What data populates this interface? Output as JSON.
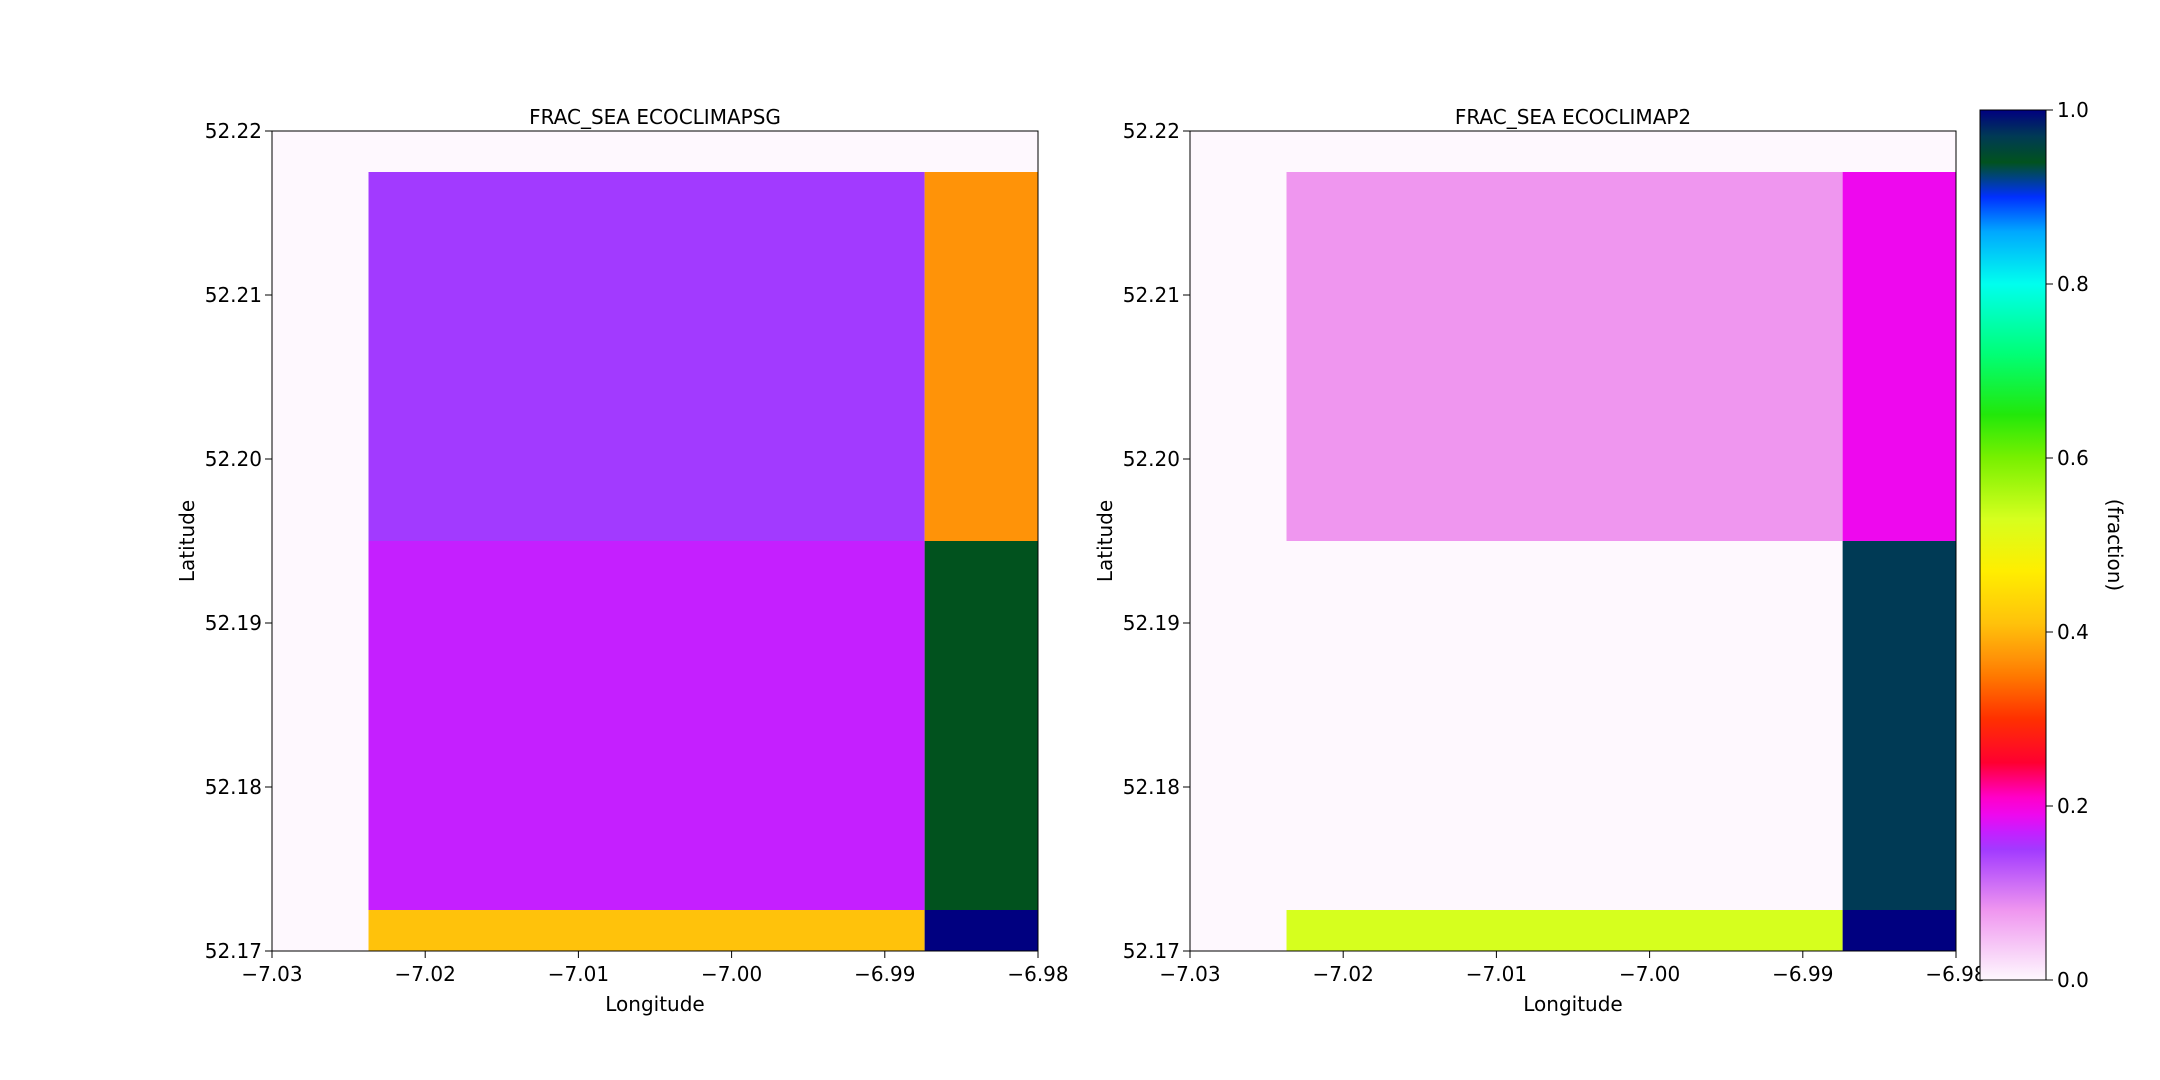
{
  "chart_data": [
    {
      "type": "heatmap",
      "title": "FRAC_SEA ECOCLIMAPSG",
      "xlabel": "Longitude",
      "ylabel": "Latitude",
      "xlim": [
        -7.03,
        -6.98
      ],
      "ylim": [
        52.17,
        52.22
      ],
      "xticks": [
        -7.03,
        -7.02,
        -7.01,
        -7.0,
        -6.99,
        -6.98
      ],
      "xtick_labels": [
        "−7.03",
        "−7.02",
        "−7.01",
        "−7.00",
        "−6.99",
        "−6.98"
      ],
      "yticks": [
        52.17,
        52.18,
        52.19,
        52.2,
        52.21,
        52.22
      ],
      "ytick_labels": [
        "52.17",
        "52.18",
        "52.19",
        "52.20",
        "52.21",
        "52.22"
      ],
      "background_value": 0.0,
      "cells": [
        {
          "x0": -7.0237,
          "x1": -6.9874,
          "y0": 52.195,
          "y1": 52.2175,
          "value": 0.15
        },
        {
          "x0": -6.9874,
          "x1": -6.98,
          "y0": 52.195,
          "y1": 52.2175,
          "value": 0.37
        },
        {
          "x0": -7.0237,
          "x1": -6.9874,
          "y0": 52.1725,
          "y1": 52.195,
          "value": 0.17
        },
        {
          "x0": -6.9874,
          "x1": -6.98,
          "y0": 52.1725,
          "y1": 52.195,
          "value": 0.94
        },
        {
          "x0": -7.0237,
          "x1": -6.9874,
          "y0": 52.17,
          "y1": 52.1725,
          "value": 0.41
        },
        {
          "x0": -6.9874,
          "x1": -6.98,
          "y0": 52.17,
          "y1": 52.1725,
          "value": 1.0
        }
      ]
    },
    {
      "type": "heatmap",
      "title": "FRAC_SEA ECOCLIMAP2",
      "xlabel": "Longitude",
      "ylabel": "Latitude",
      "xlim": [
        -7.03,
        -6.98
      ],
      "ylim": [
        52.17,
        52.22
      ],
      "xticks": [
        -7.03,
        -7.02,
        -7.01,
        -7.0,
        -6.99,
        -6.98
      ],
      "xtick_labels": [
        "−7.03",
        "−7.02",
        "−7.01",
        "−7.00",
        "−6.99",
        "−6.98"
      ],
      "yticks": [
        52.17,
        52.18,
        52.19,
        52.2,
        52.21,
        52.22
      ],
      "ytick_labels": [
        "52.17",
        "52.18",
        "52.19",
        "52.20",
        "52.21",
        "52.22"
      ],
      "background_value": 0.0,
      "cells": [
        {
          "x0": -7.0237,
          "x1": -6.9874,
          "y0": 52.195,
          "y1": 52.2175,
          "value": 0.08
        },
        {
          "x0": -6.9874,
          "x1": -6.98,
          "y0": 52.195,
          "y1": 52.2175,
          "value": 0.19
        },
        {
          "x0": -7.0237,
          "x1": -6.9874,
          "y0": 52.1725,
          "y1": 52.195,
          "value": 0.0
        },
        {
          "x0": -6.9874,
          "x1": -6.98,
          "y0": 52.1725,
          "y1": 52.195,
          "value": 0.97
        },
        {
          "x0": -7.0237,
          "x1": -6.9874,
          "y0": 52.17,
          "y1": 52.1725,
          "value": 0.53
        },
        {
          "x0": -6.9874,
          "x1": -6.98,
          "y0": 52.17,
          "y1": 52.1725,
          "value": 1.0
        }
      ]
    }
  ],
  "colorbar": {
    "label": "(fraction)",
    "range": [
      0.0,
      1.0
    ],
    "ticks": [
      0.0,
      0.2,
      0.4,
      0.6,
      0.8,
      1.0
    ],
    "tick_labels": [
      "0.0",
      "0.2",
      "0.4",
      "0.6",
      "0.8",
      "1.0"
    ],
    "colormap": "gist_ncar_r",
    "stops": [
      {
        "v": 0.0,
        "c": "#fef8fe"
      },
      {
        "v": 0.08,
        "c": "#ef96ef"
      },
      {
        "v": 0.15,
        "c": "#a23aff"
      },
      {
        "v": 0.17,
        "c": "#c51fff"
      },
      {
        "v": 0.19,
        "c": "#ee08ee"
      },
      {
        "v": 0.21,
        "c": "#ff00c8"
      },
      {
        "v": 0.25,
        "c": "#ff0030"
      },
      {
        "v": 0.3,
        "c": "#ff3000"
      },
      {
        "v": 0.35,
        "c": "#ff7a00"
      },
      {
        "v": 0.37,
        "c": "#ff9308"
      },
      {
        "v": 0.41,
        "c": "#ffc20b"
      },
      {
        "v": 0.47,
        "c": "#ffee00"
      },
      {
        "v": 0.53,
        "c": "#d6ff1e"
      },
      {
        "v": 0.6,
        "c": "#78f000"
      },
      {
        "v": 0.65,
        "c": "#22e80a"
      },
      {
        "v": 0.72,
        "c": "#00ff77"
      },
      {
        "v": 0.8,
        "c": "#00ffee"
      },
      {
        "v": 0.86,
        "c": "#00a8ff"
      },
      {
        "v": 0.9,
        "c": "#0030ff"
      },
      {
        "v": 0.94,
        "c": "#01521e"
      },
      {
        "v": 0.97,
        "c": "#003a55"
      },
      {
        "v": 1.0,
        "c": "#000080"
      }
    ]
  }
}
